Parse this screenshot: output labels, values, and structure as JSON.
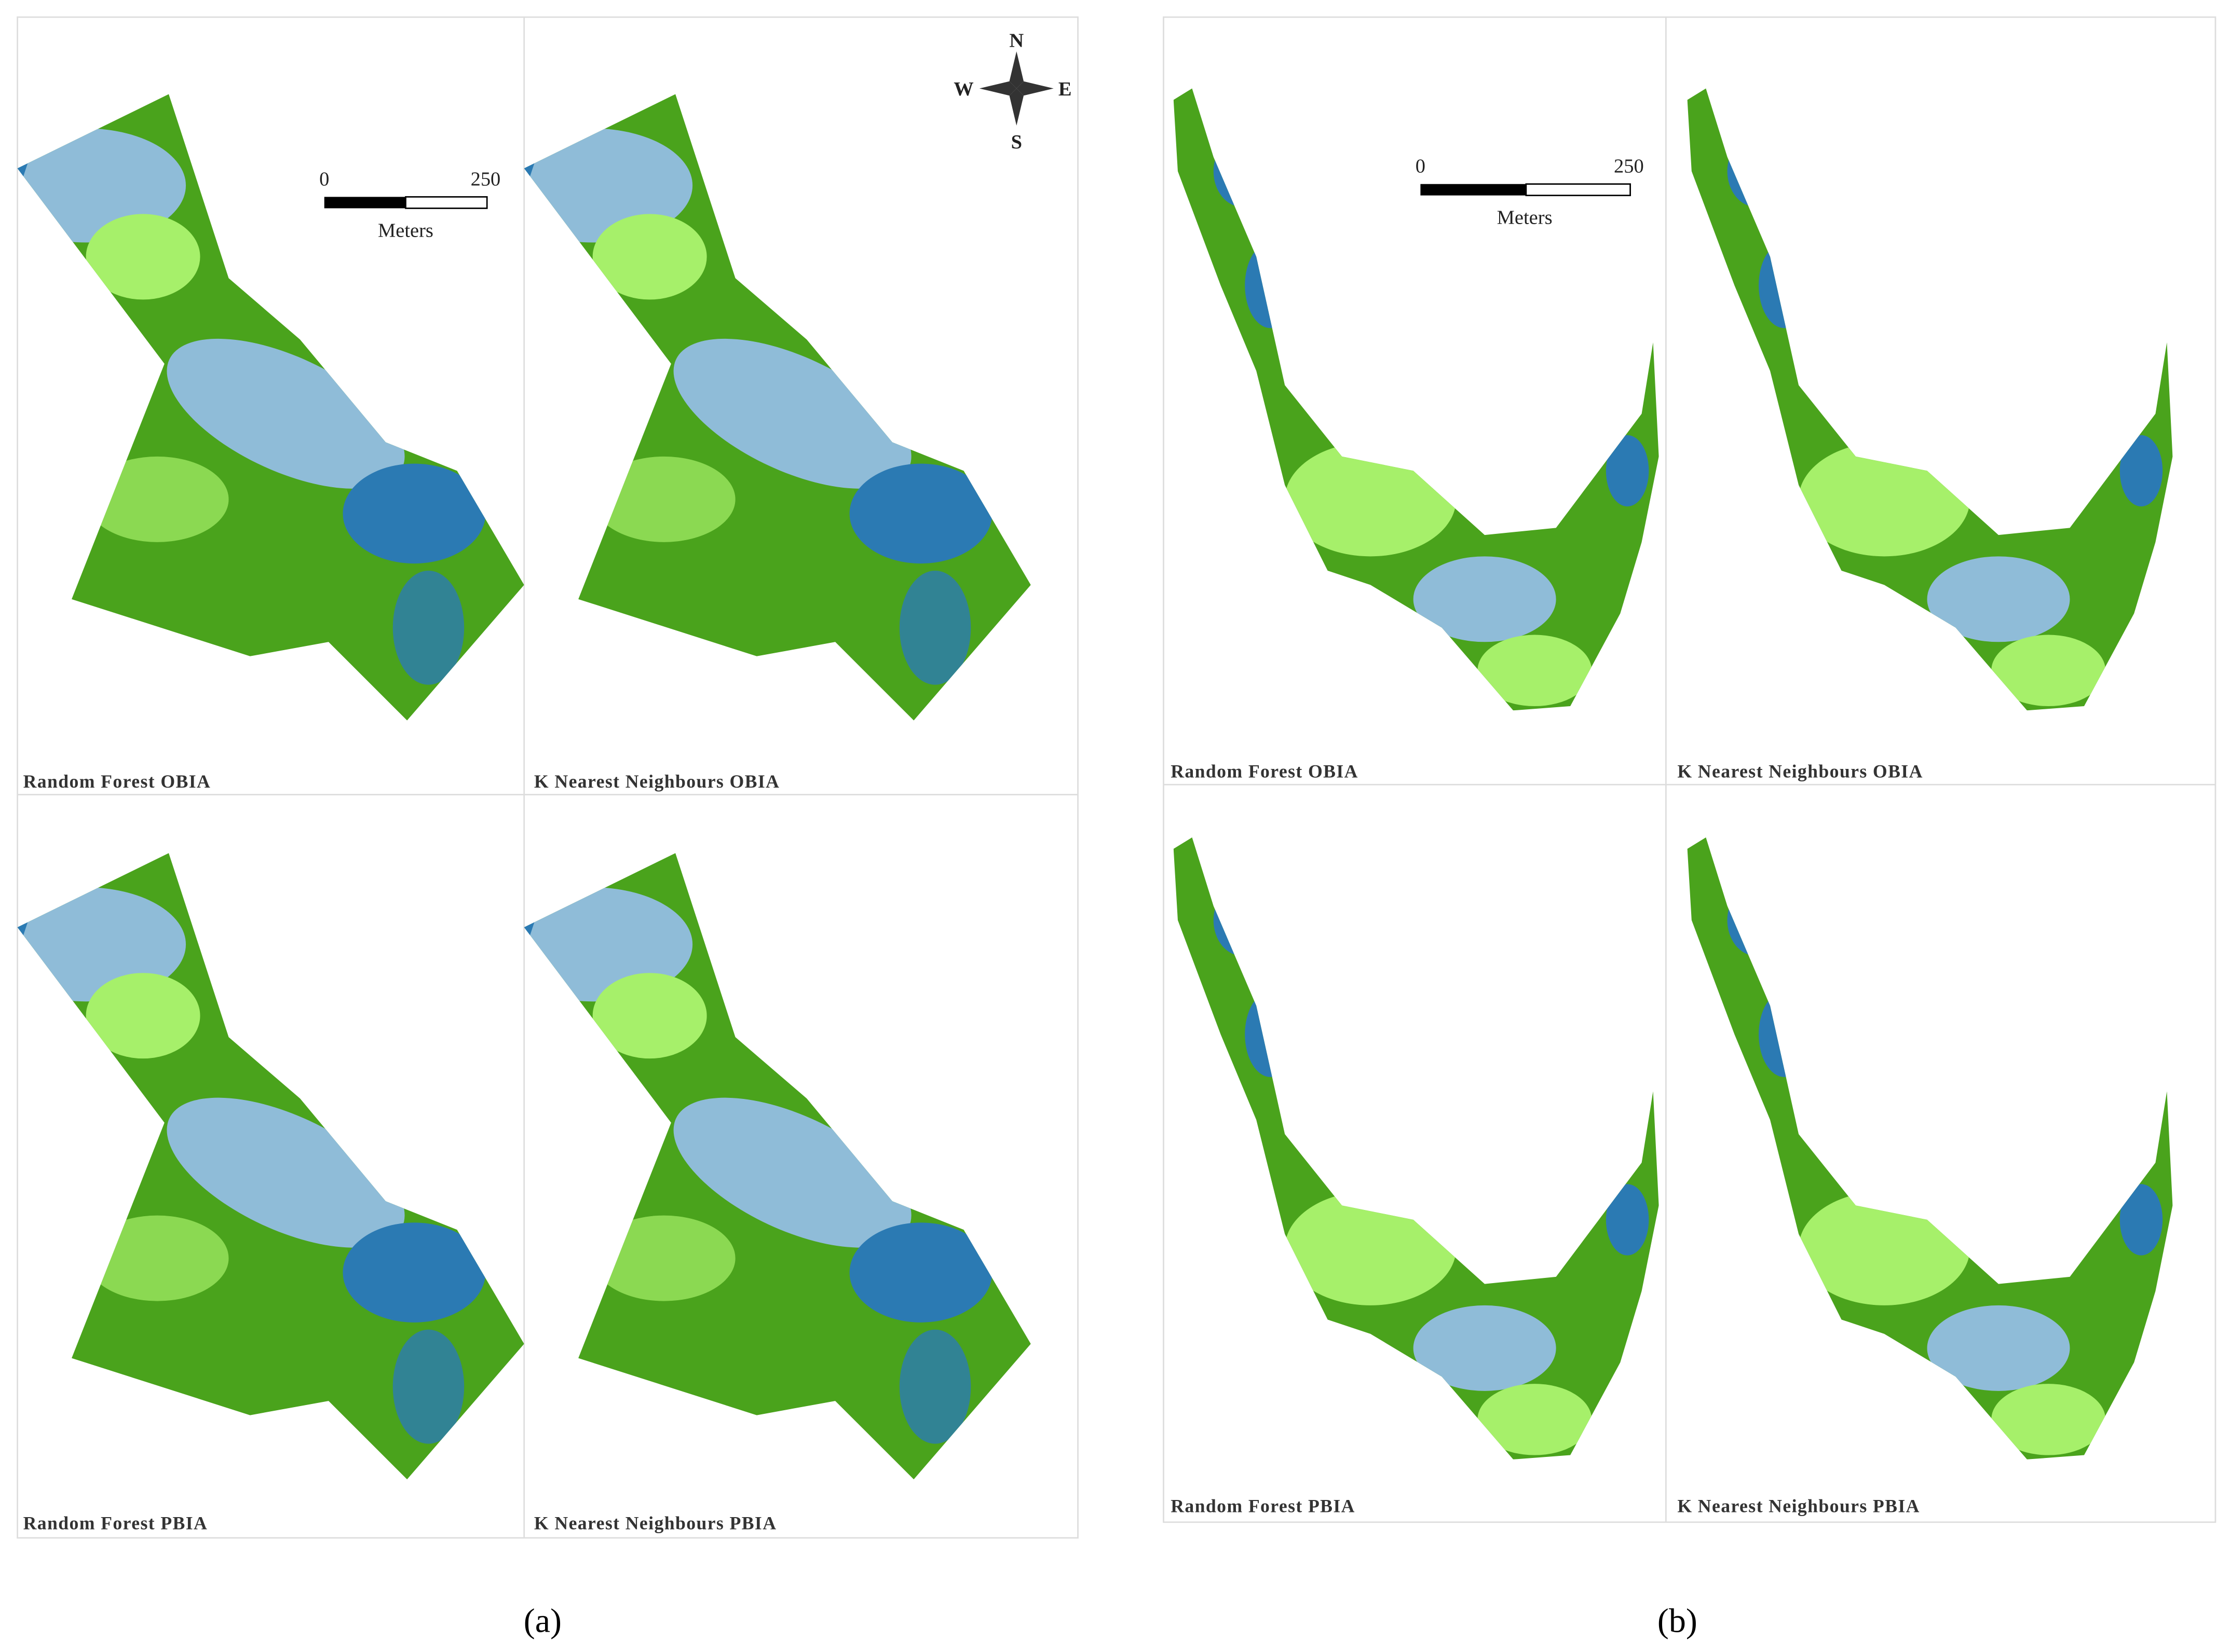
{
  "panels": [
    {
      "caption": "(a)",
      "compass": {
        "north": "N",
        "south": "S",
        "east": "E",
        "west": "W"
      },
      "scale_bar": {
        "start": 0,
        "end": 250,
        "unit": "Meters"
      },
      "maps": [
        {
          "label": "Random Forest OBIA"
        },
        {
          "label": "K Nearest Neighbours OBIA"
        },
        {
          "label": "Random Forest PBIA"
        },
        {
          "label": "K Nearest Neighbours PBIA"
        }
      ]
    },
    {
      "caption": "(b)",
      "scale_bar": {
        "start": 0,
        "end": 250,
        "unit": "Meters"
      },
      "maps": [
        {
          "label": "Random Forest OBIA"
        },
        {
          "label": "K Nearest Neighbours OBIA"
        },
        {
          "label": "Random Forest PBIA"
        },
        {
          "label": "K Nearest Neighbours PBIA"
        }
      ]
    }
  ]
}
